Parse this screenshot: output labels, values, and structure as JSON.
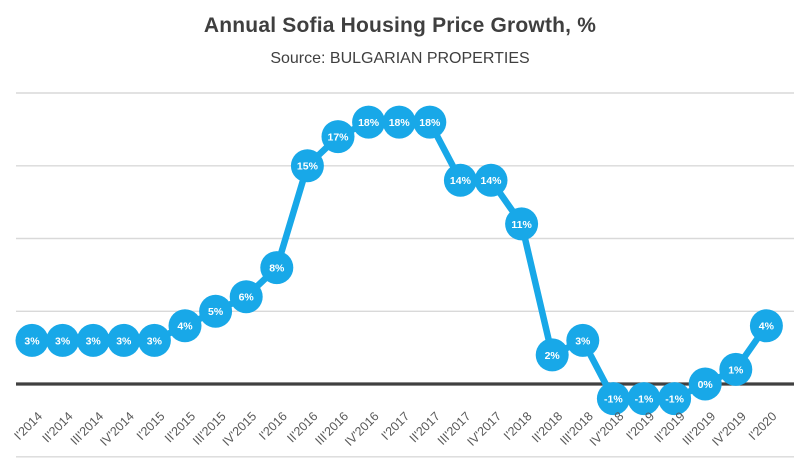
{
  "header": {
    "title": "Annual Sofia Housing Price Growth, %",
    "subtitle": "Source: BULGARIAN PROPERTIES"
  },
  "chart_data": {
    "type": "line",
    "title": "Annual Sofia Housing Price Growth, %",
    "subtitle": "Source: BULGARIAN PROPERTIES",
    "xlabel": "",
    "ylabel": "",
    "unit": "%",
    "categories": [
      "I'2014",
      "II'2014",
      "III'2014",
      "IV'2014",
      "I'2015",
      "II'2015",
      "III'2015",
      "IV'2015",
      "I'2016",
      "II'2016",
      "III'2016",
      "IV'2016",
      "I'2017",
      "II'2017",
      "III'2017",
      "IV'2017",
      "I'2018",
      "II'2018",
      "III'2018",
      "IV'2018",
      "I'2019",
      "II'2019",
      "III'2019",
      "IV'2019",
      "I'2020"
    ],
    "values": [
      3,
      3,
      3,
      3,
      3,
      4,
      5,
      6,
      8,
      15,
      17,
      18,
      18,
      18,
      14,
      14,
      11,
      2,
      3,
      -1,
      -1,
      -1,
      0,
      1,
      4
    ],
    "point_labels": [
      "3%",
      "3%",
      "3%",
      "3%",
      "3%",
      "4%",
      "5%",
      "6%",
      "8%",
      "15%",
      "17%",
      "18%",
      "18%",
      "18%",
      "14%",
      "14%",
      "11%",
      "2%",
      "3%",
      "-1%",
      "-1%",
      "-1%",
      "0%",
      "1%",
      "4%"
    ],
    "ylim": [
      -5,
      20
    ],
    "gridline_values": [
      20,
      15,
      10,
      5,
      0,
      -5
    ],
    "grid": "horizontal",
    "legend": "none",
    "x_tick_rotation_deg": 45,
    "y_axis_labels_shown": false,
    "colors": {
      "series": "#18A8E8",
      "marker": "#18A8E8",
      "marker_label": "#FFFFFF",
      "gridline": "#D9D9D9",
      "zero_line": "#404040",
      "title": "#3F3F3F",
      "axis_tick": "#595959",
      "background": "#FFFFFF"
    }
  }
}
